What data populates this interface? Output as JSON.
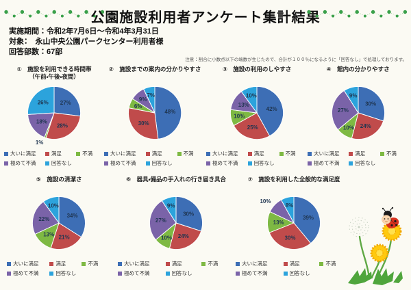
{
  "header": {
    "title": "公園施設利用者アンケート集計結果",
    "lines": [
      "実施期間：令和2年7月6日～令和4年3月31日",
      "対象：　永山中央公園パークセンター利用者様",
      "回答部数：67部"
    ],
    "note": "注意：割合に小数点以下の端数が生じたので、合計が１００％になるように「回答なし」で処理しております。"
  },
  "colors": {
    "series": [
      "#3D6EB5",
      "#C04B4B",
      "#7EB943",
      "#7A63A8",
      "#2CA3DC"
    ],
    "pie_label": "#1F3550",
    "accent_green": "#3AA04A",
    "garland_line": "#8FCF92",
    "background": "#FBFAF3"
  },
  "chart_data": [
    {
      "type": "pie",
      "title": "①　施設を利用できる時間帯",
      "subtitle": "（午前・午後・夜間）",
      "labels": [
        "大いに満足",
        "満足",
        "不満",
        "極めて不満",
        "回答なし"
      ],
      "values": [
        27,
        28,
        1,
        18,
        26
      ],
      "legend_position": "bottom",
      "outside_labels": [
        2
      ]
    },
    {
      "type": "pie",
      "title": "②　施設までの案内の分かりやすさ",
      "labels": [
        "大いに満足",
        "満足",
        "不満",
        "極めて不満",
        "回答なし"
      ],
      "values": [
        48,
        30,
        6,
        9,
        7
      ],
      "legend_position": "bottom",
      "outside_labels": []
    },
    {
      "type": "pie",
      "title": "③　施設の利用のしやすさ",
      "labels": [
        "大いに満足",
        "満足",
        "不満",
        "極めて不満",
        "回答なし"
      ],
      "values": [
        42,
        25,
        10,
        13,
        10
      ],
      "legend_position": "bottom",
      "outside_labels": []
    },
    {
      "type": "pie",
      "title": "④　館内の分かりやすさ",
      "labels": [
        "大いに満足",
        "満足",
        "不満",
        "極めて不満",
        "回答なし"
      ],
      "values": [
        30,
        24,
        10,
        27,
        9
      ],
      "legend_position": "bottom",
      "outside_labels": []
    },
    {
      "type": "pie",
      "title": "⑤　施設の清潔さ",
      "labels": [
        "大いに満足",
        "満足",
        "不満",
        "極めて不満",
        "回答なし"
      ],
      "values": [
        34,
        21,
        13,
        22,
        10
      ],
      "legend_position": "bottom",
      "outside_labels": []
    },
    {
      "type": "pie",
      "title": "⑥　器具・備品の手入れの行き届き具合",
      "labels": [
        "大いに満足",
        "満足",
        "不満",
        "極めて不満",
        "回答なし"
      ],
      "values": [
        30,
        24,
        10,
        27,
        9
      ],
      "legend_position": "bottom",
      "outside_labels": []
    },
    {
      "type": "pie",
      "title": "⑦　施設を利用した全般的な満足度",
      "labels": [
        "大いに満足",
        "満足",
        "不満",
        "極めて不満",
        "回答なし"
      ],
      "values": [
        39,
        30,
        13,
        10,
        8
      ],
      "legend_position": "bottom",
      "outside_labels": [
        3
      ]
    }
  ]
}
